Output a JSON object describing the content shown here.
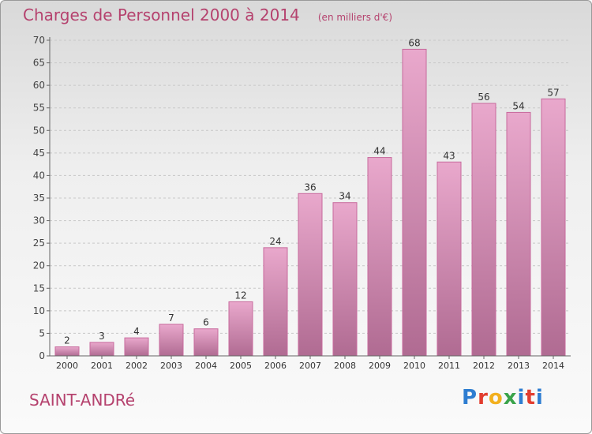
{
  "title": "Charges de Personnel 2000 à 2014",
  "subtitle": "(en milliers d'€)",
  "place_name": "SAINT-ANDRé",
  "logo_text": "Proxiti",
  "colors": {
    "bar": "#d97fb0",
    "accent": "#b5426e"
  },
  "chart_data": {
    "type": "bar",
    "title": "Charges de Personnel 2000 à 2014",
    "subtitle": "(en milliers d'€)",
    "categories": [
      "2000",
      "2001",
      "2002",
      "2003",
      "2004",
      "2005",
      "2006",
      "2007",
      "2008",
      "2009",
      "2010",
      "2011",
      "2012",
      "2013",
      "2014"
    ],
    "values": [
      2,
      3,
      4,
      7,
      6,
      12,
      24,
      36,
      34,
      44,
      68,
      43,
      56,
      54,
      57
    ],
    "ylim": [
      0,
      70
    ],
    "yticks": [
      0,
      5,
      10,
      15,
      20,
      25,
      30,
      35,
      40,
      45,
      50,
      55,
      60,
      65,
      70
    ],
    "grid": true,
    "data_labels": true
  }
}
